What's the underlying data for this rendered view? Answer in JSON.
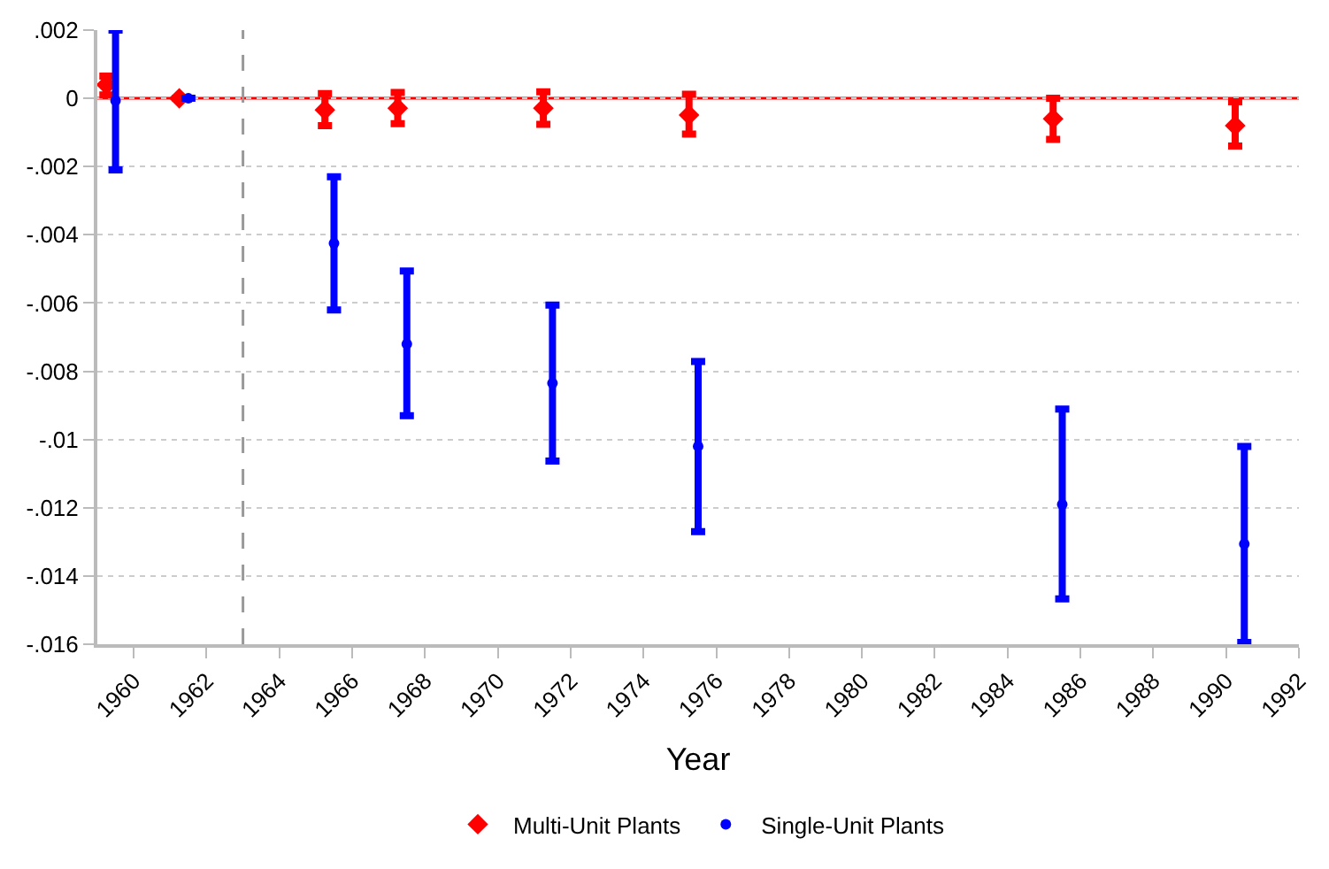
{
  "chart_data": {
    "type": "scatter",
    "xlabel": "Year",
    "xlim": [
      1959,
      1992
    ],
    "xticks": [
      1960,
      1962,
      1964,
      1966,
      1968,
      1970,
      1972,
      1974,
      1976,
      1978,
      1980,
      1982,
      1984,
      1986,
      1988,
      1990,
      1992
    ],
    "ylim": [
      -0.016,
      0.002
    ],
    "yticks": [
      {
        "value": 0.002,
        "label": ".002"
      },
      0,
      {
        "value": -0.002,
        "label": "-.002"
      },
      {
        "value": -0.004,
        "label": "-.004"
      },
      {
        "value": -0.006,
        "label": "-.006"
      },
      {
        "value": -0.008,
        "label": "-.008"
      },
      {
        "value": -0.01,
        "label": "-.01"
      },
      {
        "value": -0.012,
        "label": "-.012"
      },
      {
        "value": -0.014,
        "label": "-.014"
      },
      {
        "value": -0.016,
        "label": "-.016"
      }
    ],
    "grid": "y",
    "legend": "bottom",
    "ref_lines": [
      {
        "axis": "y",
        "value": 0,
        "color": "#ff0000",
        "line_style": "solid"
      },
      {
        "axis": "x",
        "value": 1963,
        "color": "#999999",
        "line_style": "dashed"
      }
    ],
    "series": [
      {
        "name": "Multi-Unit Plants",
        "color": "#ff0000",
        "marker": "diamond",
        "x": [
          1959.25,
          1961.25,
          1965.25,
          1967.25,
          1971.25,
          1975.25,
          1985.25,
          1990.25
        ],
        "values": [
          0.0004,
          0,
          -0.00034,
          -0.00029,
          -0.00029,
          -0.00049,
          -0.0006,
          -0.0008
        ],
        "errors": [
          [
            0.0001,
            0.00065
          ],
          null,
          [
            -0.0008,
            0.00014
          ],
          [
            -0.00074,
            0.00017
          ],
          [
            -0.00076,
            0.00019
          ],
          [
            -0.00105,
            0.00012
          ],
          [
            -0.0012,
            0.0
          ],
          [
            -0.0014,
            -0.0001
          ]
        ]
      },
      {
        "name": "Single-Unit Plants",
        "color": "#0000ff",
        "marker": "circle",
        "x": [
          1959.5,
          1961.5,
          1965.5,
          1967.5,
          1971.5,
          1975.5,
          1985.5,
          1990.5
        ],
        "values": [
          -7e-05,
          0,
          -0.00425,
          -0.0072,
          -0.00835,
          -0.0102,
          -0.0119,
          -0.01306
        ],
        "errors": [
          [
            -0.0021,
            0.002
          ],
          null,
          [
            -0.0062,
            -0.0023
          ],
          [
            -0.0093,
            -0.00506
          ],
          [
            -0.01063,
            -0.00606
          ],
          [
            -0.0127,
            -0.00771
          ],
          [
            -0.01467,
            -0.00911
          ],
          [
            -0.01595,
            -0.0102
          ]
        ]
      }
    ]
  }
}
